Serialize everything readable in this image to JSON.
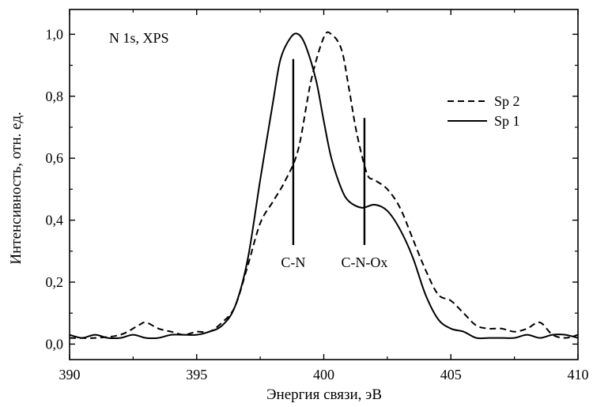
{
  "chart_data": {
    "type": "line",
    "title": "N 1s, XPS",
    "xlabel": "Энергия связи, эВ",
    "ylabel": "Интенсивность, отн. ед.",
    "xlim": [
      390,
      410
    ],
    "ylim": [
      -0.05,
      1.08
    ],
    "xticks": [
      390,
      395,
      400,
      405,
      410
    ],
    "xtick_labels": [
      "390",
      "395",
      "400",
      "405",
      "410"
    ],
    "yticks": [
      0.0,
      0.2,
      0.4,
      0.6,
      0.8,
      1.0
    ],
    "ytick_labels": [
      "0,0",
      "0,2",
      "0,4",
      "0,6",
      "0,8",
      "1,0"
    ],
    "legend_position": "right",
    "series": [
      {
        "name": "Sp 2",
        "style": "dashed",
        "x": [
          390,
          391,
          392,
          392.7,
          393,
          393.5,
          394,
          394.5,
          395,
          395.5,
          396,
          396.5,
          397,
          397.5,
          398,
          398.5,
          399,
          399.5,
          400,
          400.3,
          400.7,
          401,
          401.3,
          401.7,
          402,
          402.5,
          403,
          403.5,
          404,
          404.5,
          405,
          405.5,
          406,
          406.5,
          407,
          407.5,
          408,
          408.5,
          409,
          409.5,
          410
        ],
        "y": [
          0.02,
          0.02,
          0.03,
          0.06,
          0.07,
          0.05,
          0.04,
          0.03,
          0.04,
          0.04,
          0.07,
          0.12,
          0.25,
          0.39,
          0.46,
          0.53,
          0.63,
          0.85,
          0.99,
          1.0,
          0.95,
          0.82,
          0.68,
          0.55,
          0.53,
          0.5,
          0.44,
          0.34,
          0.24,
          0.16,
          0.14,
          0.1,
          0.06,
          0.05,
          0.05,
          0.04,
          0.05,
          0.07,
          0.03,
          0.02,
          0.03
        ]
      },
      {
        "name": "Sp 1",
        "style": "solid",
        "x": [
          390,
          390.5,
          391,
          391.5,
          392,
          392.5,
          393,
          393.5,
          394,
          394.5,
          395,
          395.5,
          396,
          396.5,
          397,
          397.5,
          398,
          398.3,
          398.7,
          399,
          399.3,
          399.7,
          400,
          400.3,
          400.7,
          401,
          401.5,
          402,
          402.5,
          403,
          403.5,
          404,
          404.5,
          405,
          405.5,
          406,
          406.5,
          407,
          407.5,
          408,
          408.5,
          409,
          409.5,
          410
        ],
        "y": [
          0.03,
          0.02,
          0.03,
          0.02,
          0.02,
          0.03,
          0.02,
          0.02,
          0.03,
          0.03,
          0.03,
          0.04,
          0.06,
          0.12,
          0.27,
          0.53,
          0.78,
          0.92,
          0.99,
          1.0,
          0.96,
          0.85,
          0.72,
          0.6,
          0.5,
          0.46,
          0.44,
          0.45,
          0.43,
          0.37,
          0.28,
          0.16,
          0.08,
          0.05,
          0.04,
          0.02,
          0.02,
          0.02,
          0.02,
          0.03,
          0.02,
          0.03,
          0.03,
          0.02
        ]
      }
    ],
    "annotations": [
      {
        "text": "C-N",
        "x": 398.8,
        "y_from": 0.32,
        "y_to": 0.92
      },
      {
        "text": "C-N-Ox",
        "x": 401.6,
        "y_from": 0.32,
        "y_to": 0.73
      }
    ]
  }
}
